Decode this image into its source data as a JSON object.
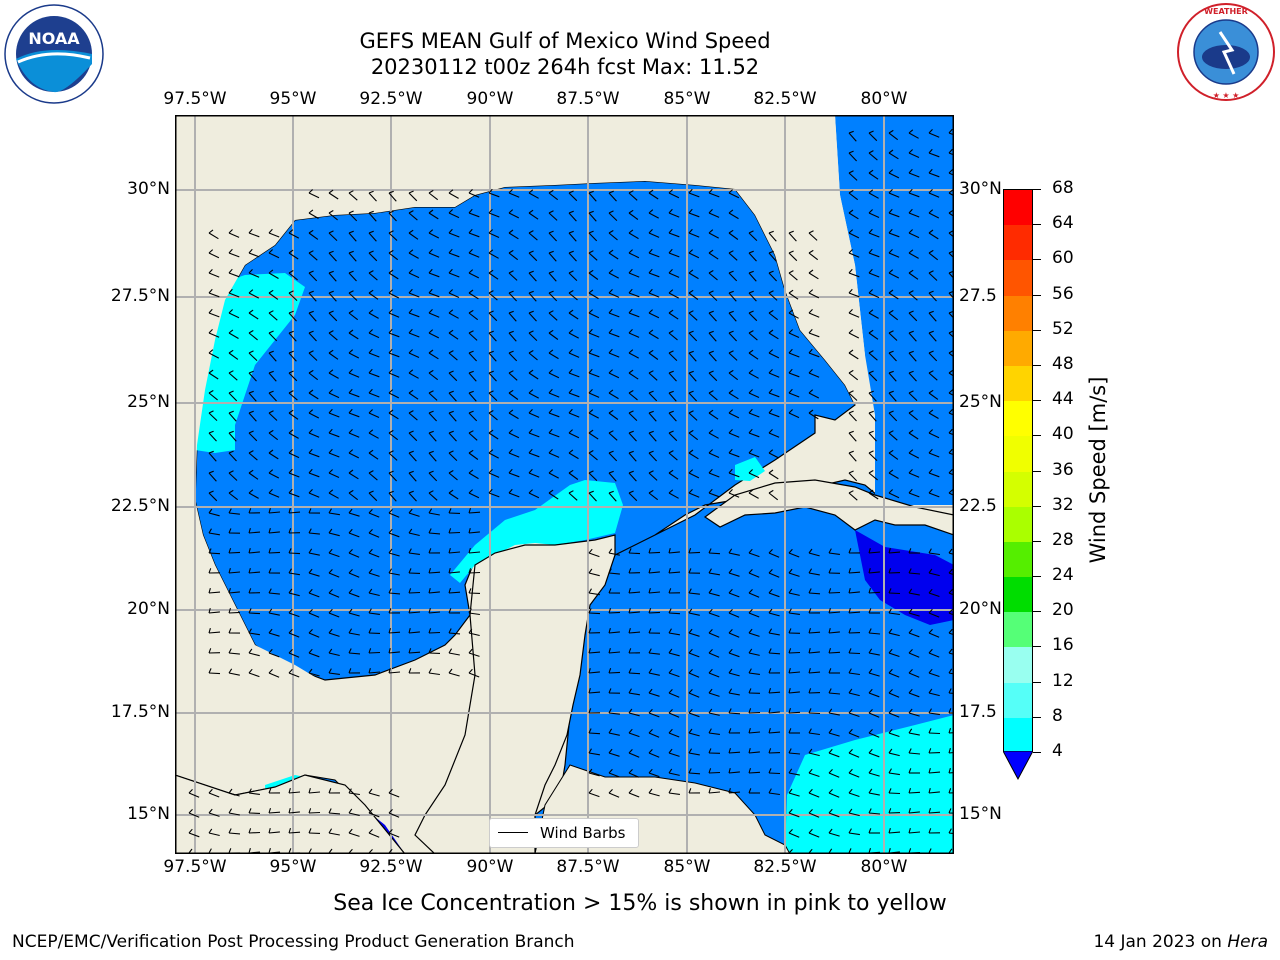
{
  "header": {
    "title_line1": "GEFS MEAN Gulf of Mexico Wind Speed",
    "title_line2": "20230112 t00z 264h fcst   Max: 11.52"
  },
  "logos": {
    "left_name": "NOAA",
    "left_ring_text": "NATIONAL OCEANIC AND ATMOSPHERIC ADMINISTRATION · U.S. DEPARTMENT OF COMMERCE",
    "right_ring_text": "NATIONAL WEATHER SERVICE"
  },
  "map": {
    "lon_labels": [
      "97.5°W",
      "95°W",
      "92.5°W",
      "90°W",
      "87.5°W",
      "85°W",
      "82.5°W",
      "80°W"
    ],
    "lat_labels_left": [
      "30°N",
      "27.5°N",
      "25°N",
      "22.5°N",
      "20°N",
      "17.5°N",
      "15°N"
    ],
    "lat_labels_right": [
      "30°N",
      "27.5",
      "25°N",
      "22.5",
      "20°N",
      "17.5",
      "15°N"
    ],
    "legend_label": "Wind Barbs"
  },
  "colorbar": {
    "label": "Wind Speed [m/s]",
    "ticks": [
      "68",
      "64",
      "60",
      "56",
      "52",
      "48",
      "44",
      "40",
      "36",
      "32",
      "28",
      "24",
      "20",
      "16",
      "12",
      "8",
      "4"
    ],
    "colors": [
      "#ff0000",
      "#ff2b00",
      "#ff5500",
      "#ff8000",
      "#ffaa00",
      "#ffd400",
      "#ffff00",
      "#f0ff00",
      "#d4ff00",
      "#aaff00",
      "#55ee00",
      "#00dd00",
      "#55ff77",
      "#99fff0",
      "#55fff8",
      "#00ffff",
      "#0080ff"
    ],
    "under_color": "#0000ff"
  },
  "colors": {
    "land": "#efedde",
    "band_4_8": "#0080ff",
    "band_8_12": "#00ffff",
    "band_under_4": "#0000ee"
  },
  "notes": {
    "sea_ice": "Sea Ice Concentration > 15% is shown in pink to yellow"
  },
  "footer": {
    "left": "NCEP/EMC/Verification Post Processing Product Generation Branch",
    "right_prefix": "14 Jan 2023 on ",
    "right_host": "Hera"
  }
}
